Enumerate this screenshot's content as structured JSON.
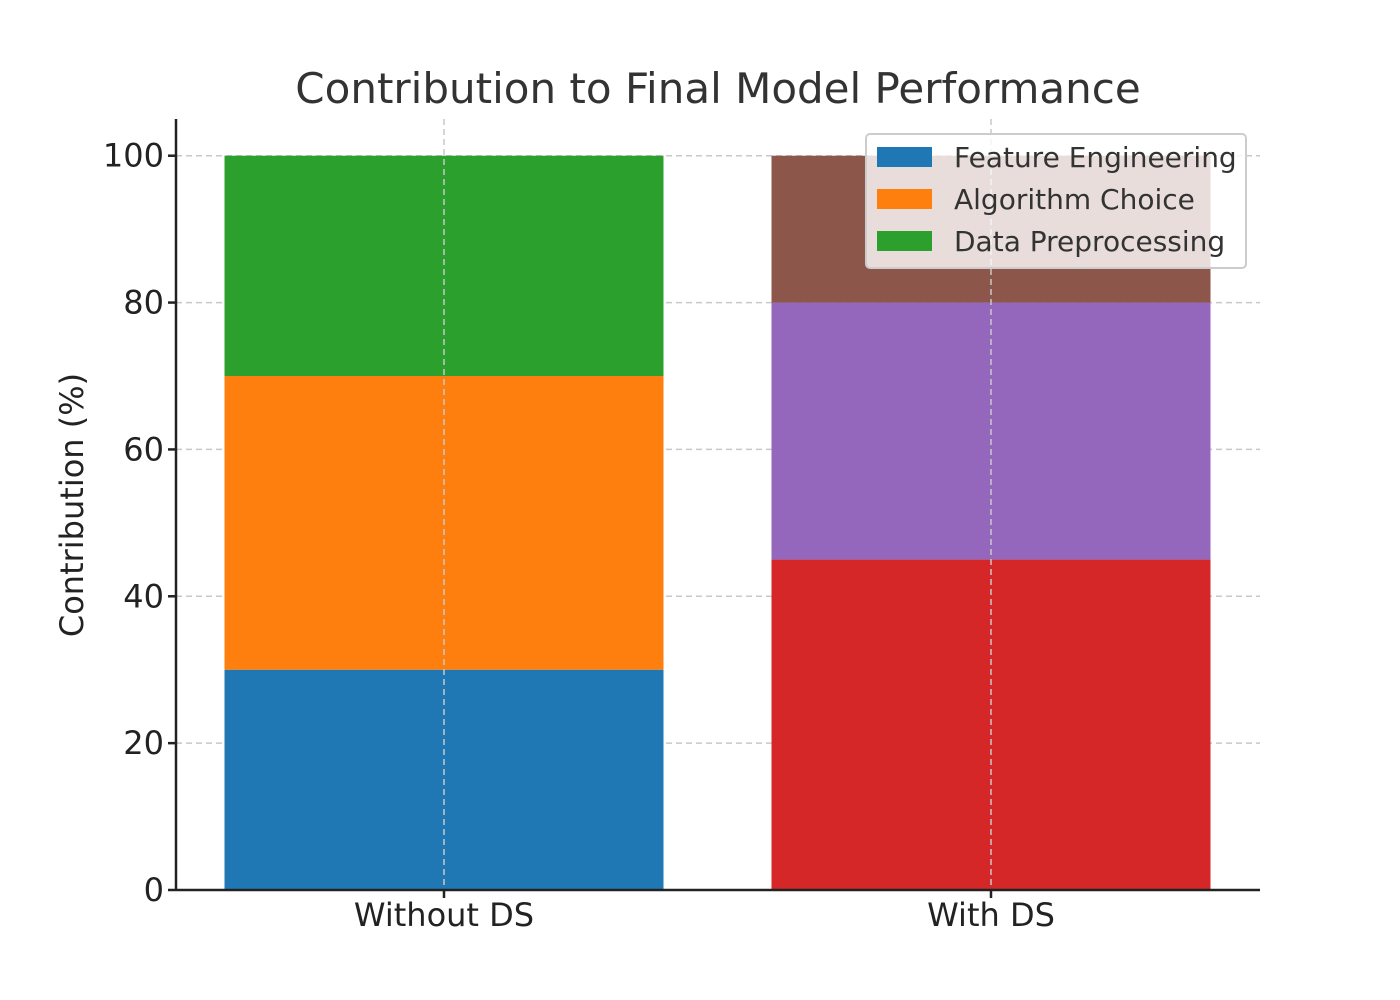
{
  "chart_data": {
    "type": "bar",
    "stacked": true,
    "title": "Contribution to Final Model Performance",
    "xlabel": "",
    "ylabel": "Contribution (%)",
    "ylim": [
      0,
      105
    ],
    "yticks": [
      0,
      20,
      40,
      60,
      80,
      100
    ],
    "categories": [
      "Without DS",
      "With DS"
    ],
    "grid": true,
    "legend_position": "top-right",
    "series": [
      {
        "name": "Feature Engineering",
        "values": [
          30,
          0
        ],
        "color": "#1f77b4"
      },
      {
        "name": "Algorithm Choice",
        "values": [
          40,
          0
        ],
        "color": "#ff7f0e"
      },
      {
        "name": "Data Preprocessing",
        "values": [
          30,
          0
        ],
        "color": "#2ca02c"
      },
      {
        "values": [
          0,
          45
        ],
        "color": "#d62728"
      },
      {
        "values": [
          0,
          35
        ],
        "color": "#9467bd"
      },
      {
        "values": [
          0,
          20
        ],
        "color": "#8c564b"
      }
    ]
  }
}
